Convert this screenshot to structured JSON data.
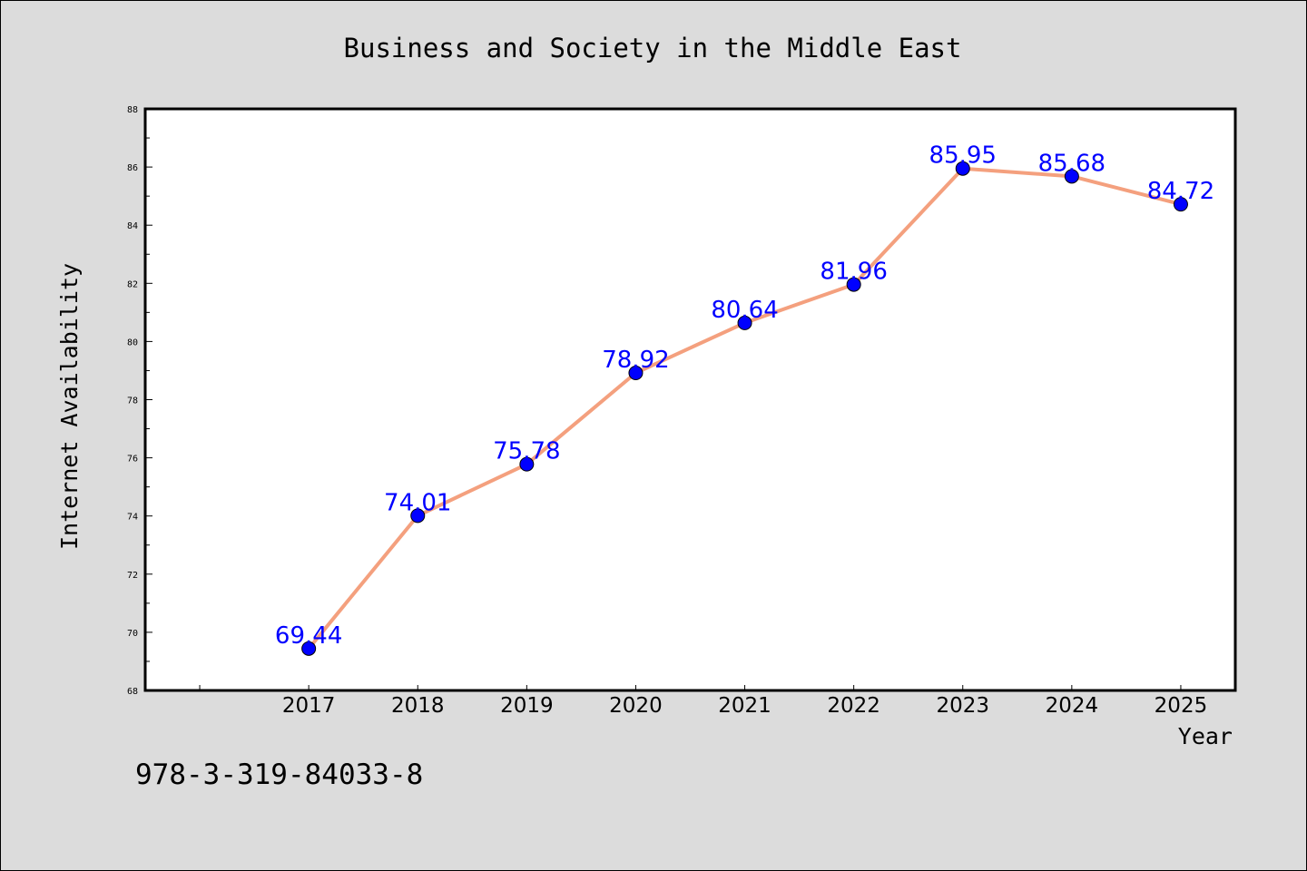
{
  "chart_data": {
    "type": "line",
    "title": "Business and Society in the Middle East",
    "xlabel": "Year",
    "ylabel": "Internet Availability",
    "categories": [
      "2017",
      "2018",
      "2019",
      "2020",
      "2021",
      "2022",
      "2023",
      "2024",
      "2025"
    ],
    "values": [
      69.44,
      74.01,
      75.78,
      78.92,
      80.64,
      81.96,
      85.95,
      85.68,
      84.72
    ],
    "data_labels": [
      "69.44",
      "74.01",
      "75.78",
      "78.92",
      "80.64",
      "81.96",
      "85.95",
      "85.68",
      "84.72"
    ],
    "ylim": [
      68,
      88
    ],
    "yticks": [
      68,
      70,
      72,
      74,
      76,
      78,
      80,
      82,
      84,
      86,
      88
    ],
    "xlim": [
      2015.5,
      2025.5
    ],
    "grid": false,
    "legend": "none",
    "colors": {
      "line": "#f4a07e",
      "marker": "#0000ff",
      "data_label": "#0000ff",
      "plot_background": "#ffffff",
      "figure_background": "#dcdcdc"
    }
  },
  "footer": {
    "isbn": "978-3-319-84033-8"
  }
}
